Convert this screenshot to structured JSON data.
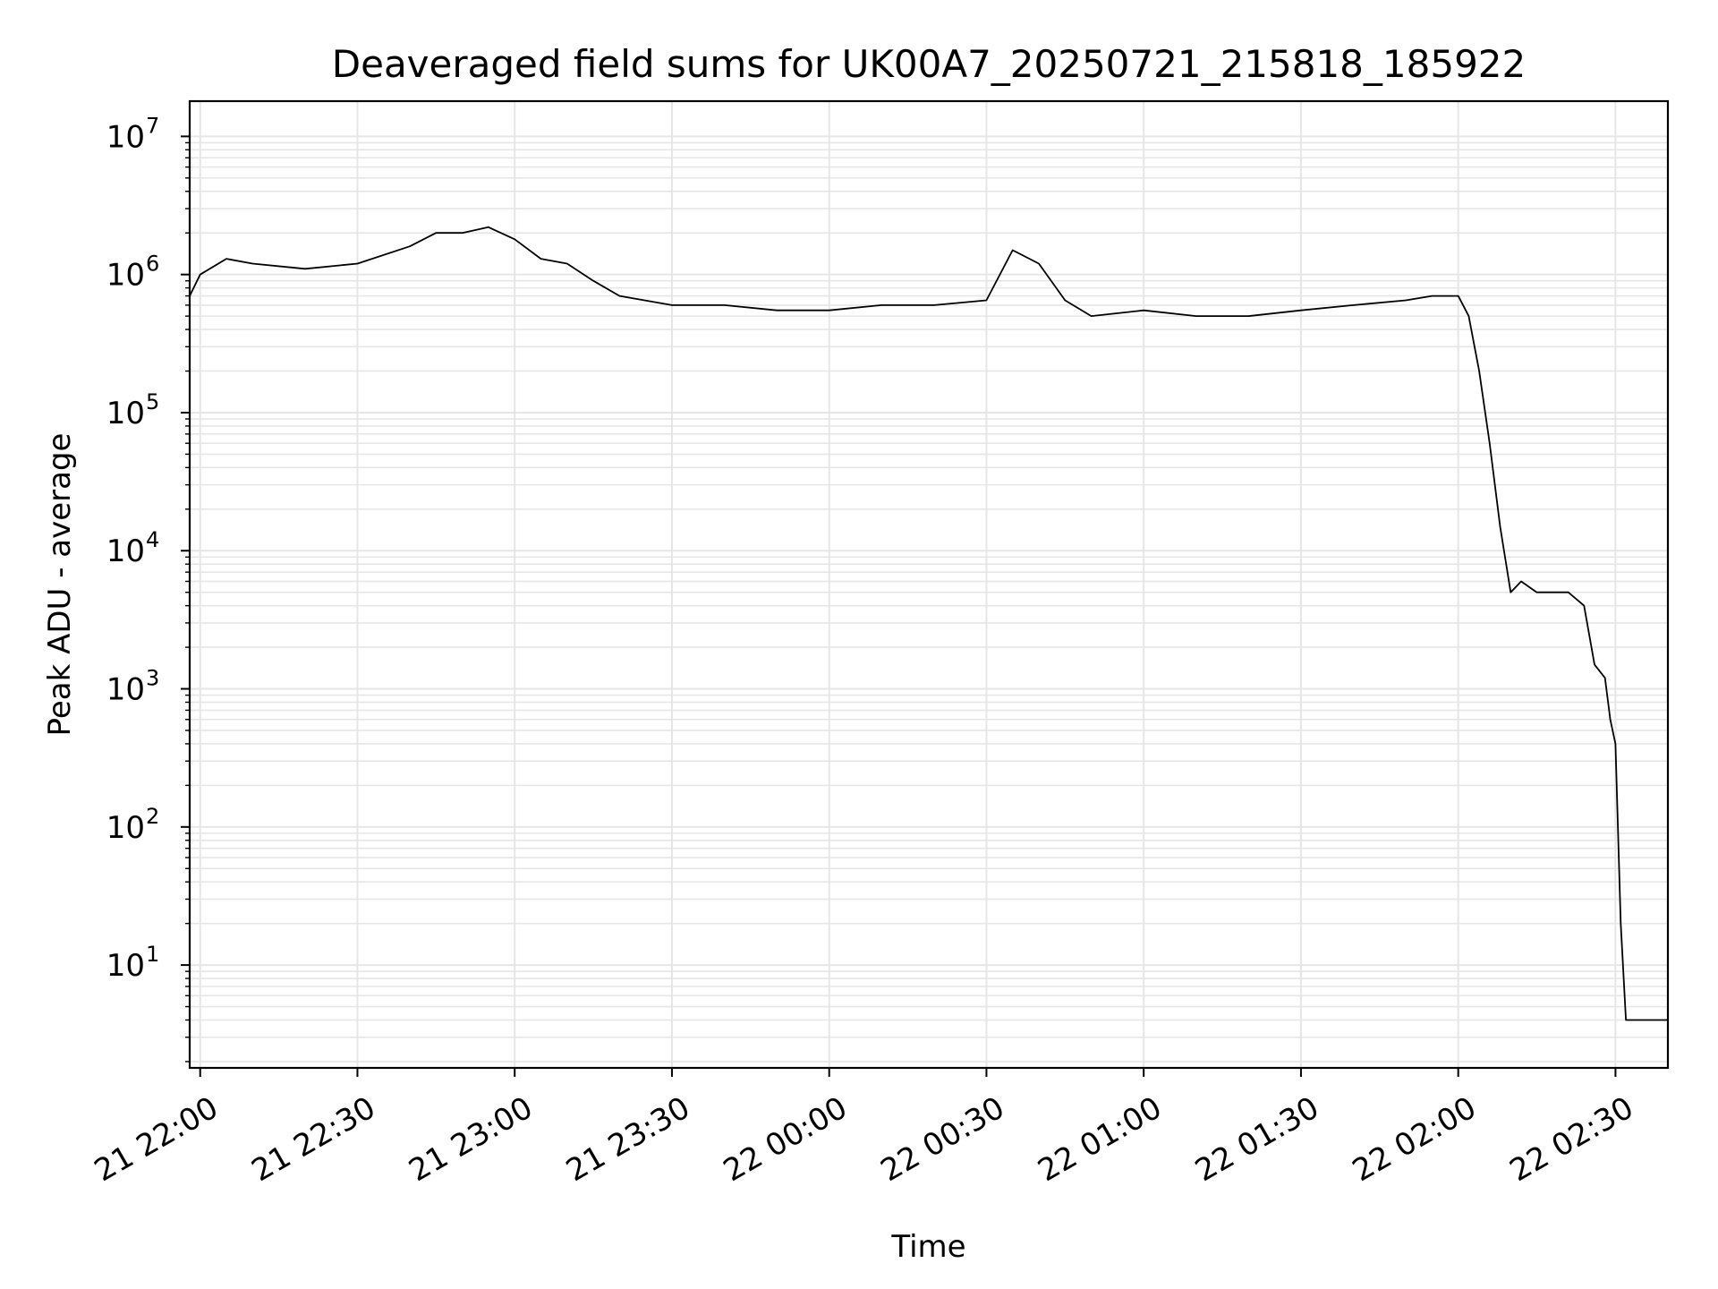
{
  "chart_data": {
    "type": "line",
    "title": "Deaveraged field sums for UK00A7_20250721_215818_185922",
    "xlabel": "Time",
    "ylabel": "Peak ADU - average",
    "x_axis": "datetime",
    "xlim": [
      "2025-07-21 21:58",
      "2025-07-22 02:40"
    ],
    "ylim": [
      1.8,
      18000000
    ],
    "yscale": "log",
    "grid": true,
    "line_color": "#000000",
    "x_tick_labels": [
      "21 22:00",
      "21 22:30",
      "21 23:00",
      "21 23:30",
      "22 00:00",
      "22 00:30",
      "22 01:00",
      "22 01:30",
      "22 02:00",
      "22 02:30"
    ],
    "y_tick_labels": [
      {
        "base": "10",
        "exp": "1",
        "value": 10
      },
      {
        "base": "10",
        "exp": "2",
        "value": 100
      },
      {
        "base": "10",
        "exp": "3",
        "value": 1000
      },
      {
        "base": "10",
        "exp": "4",
        "value": 10000
      },
      {
        "base": "10",
        "exp": "5",
        "value": 100000
      },
      {
        "base": "10",
        "exp": "6",
        "value": 1000000
      },
      {
        "base": "10",
        "exp": "7",
        "value": 10000000
      }
    ],
    "series": [
      {
        "x": [
          "2025-07-21 21:58",
          "2025-07-21 22:00",
          "2025-07-21 22:05",
          "2025-07-21 22:10",
          "2025-07-21 22:20",
          "2025-07-21 22:30",
          "2025-07-21 22:40",
          "2025-07-21 22:45",
          "2025-07-21 22:50",
          "2025-07-21 22:55",
          "2025-07-21 23:00",
          "2025-07-21 23:05",
          "2025-07-21 23:10",
          "2025-07-21 23:15",
          "2025-07-21 23:20",
          "2025-07-21 23:30",
          "2025-07-21 23:40",
          "2025-07-21 23:50",
          "2025-07-22 00:00",
          "2025-07-22 00:10",
          "2025-07-22 00:20",
          "2025-07-22 00:30",
          "2025-07-22 00:35",
          "2025-07-22 00:40",
          "2025-07-22 00:45",
          "2025-07-22 00:50",
          "2025-07-22 01:00",
          "2025-07-22 01:10",
          "2025-07-22 01:20",
          "2025-07-22 01:30",
          "2025-07-22 01:40",
          "2025-07-22 01:50",
          "2025-07-22 01:55",
          "2025-07-22 02:00",
          "2025-07-22 02:02",
          "2025-07-22 02:04",
          "2025-07-22 02:06",
          "2025-07-22 02:08",
          "2025-07-22 02:10",
          "2025-07-22 02:12",
          "2025-07-22 02:15",
          "2025-07-22 02:18",
          "2025-07-22 02:21",
          "2025-07-22 02:24",
          "2025-07-22 02:26",
          "2025-07-22 02:28",
          "2025-07-22 02:29",
          "2025-07-22 02:30",
          "2025-07-22 02:31",
          "2025-07-22 02:32",
          "2025-07-22 02:35",
          "2025-07-22 02:40"
        ],
        "y": [
          700000,
          1000000,
          1300000,
          1200000,
          1100000,
          1200000,
          1600000,
          2000000,
          2000000,
          2200000,
          1800000,
          1300000,
          1200000,
          900000,
          700000,
          600000,
          600000,
          550000,
          550000,
          600000,
          600000,
          650000,
          1500000,
          1200000,
          650000,
          500000,
          550000,
          500000,
          500000,
          550000,
          600000,
          650000,
          700000,
          700000,
          500000,
          200000,
          60000,
          15000,
          5000,
          6000,
          5000,
          5000,
          5000,
          4000,
          1500,
          1200,
          600,
          400,
          20,
          4,
          4,
          4
        ]
      }
    ]
  }
}
